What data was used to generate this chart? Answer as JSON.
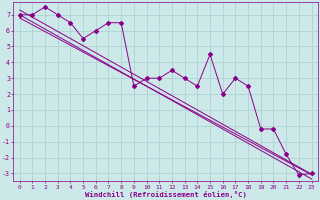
{
  "x_data": [
    0,
    1,
    2,
    3,
    4,
    5,
    6,
    7,
    8,
    9,
    10,
    11,
    12,
    13,
    14,
    15,
    16,
    17,
    18,
    19,
    20,
    21,
    22,
    23
  ],
  "main_line": [
    7.0,
    7.0,
    7.5,
    7.0,
    6.5,
    5.5,
    6.0,
    6.5,
    6.5,
    2.5,
    3.0,
    3.0,
    3.5,
    3.0,
    2.5,
    4.5,
    2.0,
    3.0,
    2.5,
    -0.2,
    -0.2,
    -1.8,
    -3.1,
    -3.0
  ],
  "trend_line1": [
    7.0,
    6.55,
    6.1,
    5.65,
    5.2,
    4.75,
    4.3,
    3.85,
    3.4,
    2.95,
    2.5,
    2.05,
    1.6,
    1.15,
    0.7,
    0.25,
    -0.2,
    -0.65,
    -1.1,
    -1.55,
    -2.0,
    -2.45,
    -2.9,
    -3.35
  ],
  "trend_line2": [
    6.8,
    6.37,
    5.94,
    5.51,
    5.08,
    4.65,
    4.22,
    3.79,
    3.36,
    2.93,
    2.5,
    2.07,
    1.64,
    1.21,
    0.78,
    0.35,
    -0.08,
    -0.51,
    -0.94,
    -1.37,
    -1.8,
    -2.23,
    -2.66,
    -3.09
  ],
  "trend_line3": [
    7.3,
    6.85,
    6.4,
    5.95,
    5.5,
    5.05,
    4.6,
    4.15,
    3.7,
    3.25,
    2.8,
    2.35,
    1.9,
    1.45,
    1.0,
    0.55,
    0.1,
    -0.35,
    -0.8,
    -1.25,
    -1.7,
    -2.15,
    -2.6,
    -3.05
  ],
  "color": "#8B008B",
  "bg_color": "#cce8e8",
  "grid_color": "#aacece",
  "xlabel": "Windchill (Refroidissement éolien,°C)",
  "xlim_min": -0.5,
  "xlim_max": 23.5,
  "ylim_min": -3.5,
  "ylim_max": 7.8,
  "yticks": [
    7,
    6,
    5,
    4,
    3,
    2,
    1,
    0,
    -1,
    -2,
    -3
  ],
  "xticks": [
    0,
    1,
    2,
    3,
    4,
    5,
    6,
    7,
    8,
    9,
    10,
    11,
    12,
    13,
    14,
    15,
    16,
    17,
    18,
    19,
    20,
    21,
    22,
    23
  ]
}
